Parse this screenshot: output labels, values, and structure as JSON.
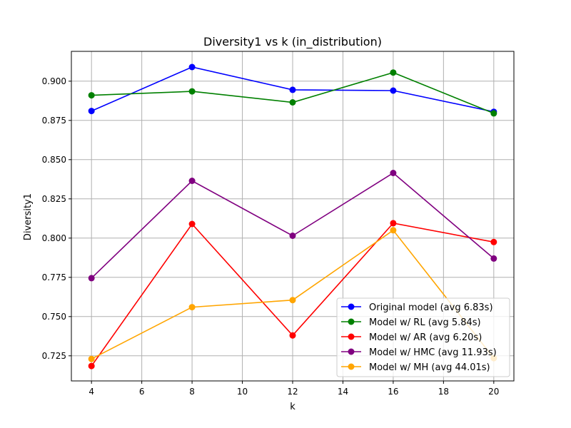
{
  "chart_data": {
    "type": "line",
    "title": "Diversity1 vs k (in_distribution)",
    "xlabel": "k",
    "ylabel": "Diversity1",
    "x": [
      4,
      8,
      12,
      16,
      20
    ],
    "xlim": [
      3.2,
      20.8
    ],
    "ylim": [
      0.709,
      0.919
    ],
    "xticks": [
      4,
      6,
      8,
      10,
      12,
      14,
      16,
      18,
      20
    ],
    "yticks": [
      0.725,
      0.75,
      0.775,
      0.8,
      0.825,
      0.85,
      0.875,
      0.9
    ],
    "xtick_labels": [
      "4",
      "6",
      "8",
      "10",
      "12",
      "14",
      "16",
      "18",
      "20"
    ],
    "ytick_labels": [
      "0.725",
      "0.750",
      "0.775",
      "0.800",
      "0.825",
      "0.850",
      "0.875",
      "0.900"
    ],
    "grid": true,
    "legend_position": "lower-right",
    "series": [
      {
        "name": "Original model (avg 6.83s)",
        "color": "#0000ff",
        "values": [
          0.881,
          0.909,
          0.8945,
          0.894,
          0.8805
        ]
      },
      {
        "name": "Model w/ RL (avg 5.84s)",
        "color": "#008000",
        "values": [
          0.891,
          0.8935,
          0.8865,
          0.9055,
          0.8795
        ]
      },
      {
        "name": "Model w/ AR (avg 6.20s)",
        "color": "#ff0000",
        "values": [
          0.7185,
          0.809,
          0.738,
          0.8095,
          0.7975
        ]
      },
      {
        "name": "Model w/ HMC (avg 11.93s)",
        "color": "#800080",
        "values": [
          0.7745,
          0.8365,
          0.8015,
          0.8415,
          0.787
        ]
      },
      {
        "name": "Model w/ MH (avg 44.01s)",
        "color": "#ffa500",
        "values": [
          0.723,
          0.756,
          0.7605,
          0.805,
          0.7235
        ]
      }
    ]
  }
}
